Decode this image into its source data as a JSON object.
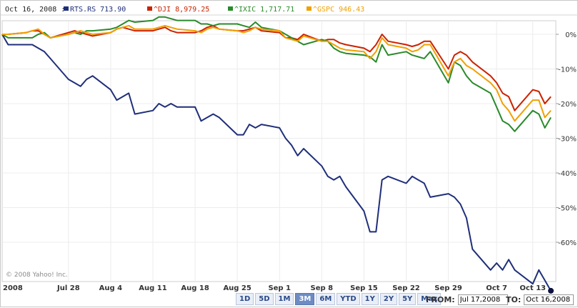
{
  "chart_data": {
    "type": "line",
    "header_date": "Oct 16, 2008 :",
    "legend": [
      {
        "symbol": "RTS.RS",
        "value": "713.90",
        "color": "#1f2f7a"
      },
      {
        "symbol": "^DJI",
        "value": "8,979.25",
        "color": "#cc2200"
      },
      {
        "symbol": "^IXIC",
        "value": "1,717.71",
        "color": "#2a8a2a"
      },
      {
        "symbol": "^GSPC",
        "value": "946.43",
        "color": "#f0a000"
      }
    ],
    "x_tick_labels": [
      "2008",
      "Jul 28",
      "Aug 4",
      "Aug 11",
      "Aug 18",
      "Aug 25",
      "Sep 1",
      "Sep 8",
      "Sep 15",
      "Sep 22",
      "Sep 29",
      "Oct 7",
      "Oct 13"
    ],
    "x_tick_days": [
      0,
      11,
      18,
      25,
      32,
      39,
      46,
      53,
      60,
      67,
      74,
      82,
      88
    ],
    "y_tick_labels": [
      "0%",
      "-10%",
      "-20%",
      "-30%",
      "-40%",
      "-50%",
      "-60%"
    ],
    "y_tick_values": [
      0,
      -10,
      -20,
      -30,
      -40,
      -50,
      -60
    ],
    "ylim": [
      -70,
      3
    ],
    "x_start": "Jul 17, 2008",
    "x_end": "Oct 16, 2008",
    "series": [
      {
        "name": "RTS.RS",
        "color": "#1f2f7a",
        "x": [
          0,
          1,
          4,
          5,
          6,
          7,
          8,
          11,
          12,
          13,
          14,
          15,
          18,
          19,
          20,
          21,
          22,
          25,
          26,
          27,
          28,
          29,
          32,
          33,
          34,
          35,
          36,
          39,
          40,
          41,
          42,
          43,
          46,
          47,
          48,
          49,
          50,
          53,
          54,
          55,
          56,
          57,
          60,
          61,
          62,
          63,
          64,
          67,
          68,
          69,
          70,
          71,
          74,
          75,
          76,
          77,
          78,
          81,
          82,
          83,
          84,
          85,
          88,
          89,
          90,
          91
        ],
        "values": [
          0,
          -3,
          -3,
          -3,
          -4,
          -5,
          -7,
          -13,
          -14,
          -15,
          -13,
          -12,
          -16,
          -19,
          -18,
          -17,
          -23,
          -22,
          -20,
          -21,
          -20,
          -21,
          -21,
          -25,
          -24,
          -23,
          -24,
          -29,
          -29,
          -26,
          -27,
          -26,
          -27,
          -30,
          -32,
          -35,
          -33,
          -38,
          -41,
          -42,
          -41,
          -44,
          -51,
          -57,
          -57,
          -42,
          -41,
          -43,
          -41,
          -42,
          -43,
          -47,
          -46,
          -47,
          -49,
          -53,
          -62,
          -68,
          -66,
          -68,
          -65,
          -68,
          -72,
          -68,
          -71,
          -74
        ]
      },
      {
        "name": "^DJI",
        "color": "#cc2200",
        "x": [
          0,
          1,
          4,
          5,
          6,
          7,
          8,
          11,
          12,
          13,
          14,
          15,
          18,
          19,
          20,
          21,
          22,
          25,
          26,
          27,
          28,
          29,
          32,
          33,
          34,
          35,
          36,
          39,
          40,
          41,
          42,
          43,
          46,
          47,
          48,
          49,
          50,
          53,
          54,
          55,
          56,
          57,
          60,
          61,
          62,
          63,
          64,
          67,
          68,
          69,
          70,
          71,
          74,
          75,
          76,
          77,
          78,
          81,
          82,
          83,
          84,
          85,
          88,
          89,
          90,
          91
        ],
        "values": [
          0,
          0,
          0.5,
          1,
          1,
          0,
          -1,
          0.5,
          1,
          0.5,
          0,
          -0.5,
          0.5,
          1.5,
          2,
          1.5,
          1,
          1,
          1.5,
          2,
          1,
          0.5,
          0.5,
          1,
          2,
          2.5,
          1.5,
          1,
          1,
          1.5,
          2,
          1,
          0.5,
          -1,
          -1,
          -1.5,
          0,
          -2,
          -1.5,
          -1.5,
          -2.5,
          -3,
          -4,
          -5,
          -3,
          0,
          -2,
          -3,
          -3.5,
          -3,
          -2,
          -2,
          -10,
          -6,
          -5,
          -6,
          -8,
          -12,
          -14,
          -17,
          -18,
          -22,
          -16,
          -16.5,
          -20,
          -18
        ]
      },
      {
        "name": "^IXIC",
        "color": "#2a8a2a",
        "x": [
          0,
          1,
          4,
          5,
          6,
          7,
          8,
          11,
          12,
          13,
          14,
          15,
          18,
          19,
          20,
          21,
          22,
          25,
          26,
          27,
          28,
          29,
          32,
          33,
          34,
          35,
          36,
          39,
          40,
          41,
          42,
          43,
          46,
          47,
          48,
          49,
          50,
          53,
          54,
          55,
          56,
          57,
          60,
          61,
          62,
          63,
          64,
          67,
          68,
          69,
          70,
          71,
          74,
          75,
          76,
          77,
          78,
          81,
          82,
          83,
          84,
          85,
          88,
          89,
          90,
          91
        ],
        "values": [
          0,
          -1,
          -1,
          -1,
          0,
          0.5,
          -1,
          0,
          0.5,
          0,
          1,
          1,
          1.5,
          2,
          3,
          4,
          3.5,
          4,
          5,
          5,
          4.5,
          4,
          4,
          3,
          3,
          2.5,
          3,
          3,
          2.5,
          2,
          3.5,
          2,
          1,
          0,
          -1,
          -2,
          -3,
          -1.5,
          -2,
          -4,
          -5,
          -5.5,
          -6,
          -6.5,
          -8,
          -3,
          -6,
          -5,
          -6,
          -6.5,
          -7,
          -5,
          -14,
          -8,
          -9,
          -12,
          -14,
          -17,
          -21,
          -25,
          -26,
          -28,
          -22,
          -23,
          -27,
          -24
        ]
      },
      {
        "name": "^GSPC",
        "color": "#f0a000",
        "x": [
          0,
          1,
          4,
          5,
          6,
          7,
          8,
          11,
          12,
          13,
          14,
          15,
          18,
          19,
          20,
          21,
          22,
          25,
          26,
          27,
          28,
          29,
          32,
          33,
          34,
          35,
          36,
          39,
          40,
          41,
          42,
          43,
          46,
          47,
          48,
          49,
          50,
          53,
          54,
          55,
          56,
          57,
          60,
          61,
          62,
          63,
          64,
          67,
          68,
          69,
          70,
          71,
          74,
          75,
          76,
          77,
          78,
          81,
          82,
          83,
          84,
          85,
          88,
          89,
          90,
          91
        ],
        "values": [
          0,
          0,
          0.5,
          1,
          1.5,
          0,
          -1,
          0,
          0.5,
          1,
          0.5,
          0,
          0.5,
          1.5,
          2,
          2.5,
          1.5,
          1.5,
          2,
          2.5,
          2,
          1.5,
          1,
          0.5,
          1.5,
          2,
          1.5,
          1,
          0.5,
          1,
          2,
          1.5,
          1,
          -1,
          -1.5,
          -2,
          -0.5,
          -2,
          -2,
          -3,
          -4,
          -4.5,
          -5,
          -7,
          -5,
          -1,
          -3,
          -4,
          -5,
          -4.5,
          -3,
          -3,
          -12,
          -8,
          -7,
          -9,
          -10,
          -14,
          -16,
          -20,
          -22,
          -25,
          -19,
          -19,
          -24,
          -22
        ]
      }
    ]
  },
  "copyright": "© 2008 Yahoo! Inc.",
  "range_buttons": [
    "1D",
    "5D",
    "1M",
    "3M",
    "6M",
    "YTD",
    "1Y",
    "2Y",
    "5Y",
    "Max"
  ],
  "active_range": "3M",
  "from_label": "FROM:",
  "from_value": "Jul 17,2008",
  "to_label": "TO:",
  "to_value": "Oct 16,2008"
}
